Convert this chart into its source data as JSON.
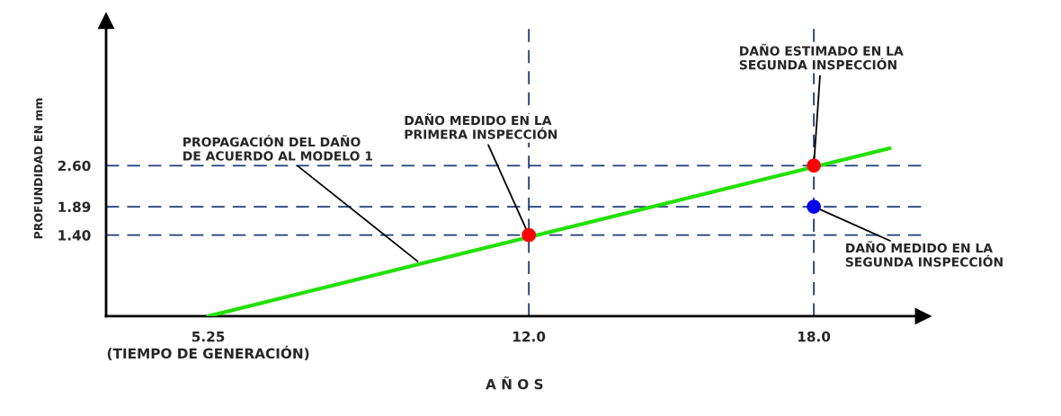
{
  "chart_data": {
    "type": "line",
    "xlabel": "A Ñ O S",
    "ylabel": "PROFUNDIDAD EN mm",
    "xlim": [
      3.1,
      20.3
    ],
    "ylim": [
      0,
      5.1
    ],
    "xticks": [
      {
        "value": 5.25,
        "label": "5.25\n(TIEMPO DE GENERACIÓN)"
      },
      {
        "value": 12,
        "label": "12.0"
      },
      {
        "value": 18,
        "label": "18.0"
      }
    ],
    "yticks": [
      {
        "value": 1.4,
        "label": "1.40"
      },
      1.89,
      {
        "value": 2.6,
        "label": "2.60"
      }
    ],
    "grid": false,
    "legend": false,
    "series": [
      {
        "color": "#22e000",
        "x": [
          5.25,
          19.6
        ],
        "values": [
          0,
          2.9
        ],
        "marker": "none",
        "line_style": "solid"
      },
      {
        "type": "scatter",
        "color": "#ff0000",
        "x": [
          12,
          18
        ],
        "values": [
          1.4,
          2.6
        ],
        "marker": "circle"
      },
      {
        "type": "scatter",
        "color": "#0000ee",
        "x": [
          18
        ],
        "values": [
          1.89
        ],
        "marker": "circle"
      }
    ],
    "ref_lines": [
      {
        "axis": "y",
        "value": 2.6,
        "color": "#1f3c78",
        "line_style": "dashed"
      },
      {
        "axis": "y",
        "value": 1.89,
        "color": "#1f3c78",
        "line_style": "dashed"
      },
      {
        "axis": "y",
        "value": 1.4,
        "color": "#1f3c78",
        "line_style": "dashed"
      },
      {
        "axis": "x",
        "value": 12,
        "color": "#1f3c78",
        "line_style": "dashed"
      },
      {
        "axis": "x",
        "value": 18,
        "color": "#1f3c78",
        "line_style": "dashed"
      }
    ],
    "annotations": [
      {
        "text": "PROPAGACIÓN DEL DAÑO\nDE ACUERDO AL MODELO 1",
        "x": 9.7,
        "y": 0.92
      },
      {
        "text": "DAÑO MEDIDO EN LA\nPRIMERA INSPECCIÓN",
        "x": 12,
        "y": 1.4
      },
      {
        "text": "DAÑO ESTIMADO EN LA\nSEGUNDA INSPECCIÓN",
        "x": 18,
        "y": 2.6
      },
      {
        "text": "DAÑO MEDIDO EN LA\nSEGUNDA INSPECCIÓN",
        "x": 18,
        "y": 1.89
      }
    ]
  }
}
